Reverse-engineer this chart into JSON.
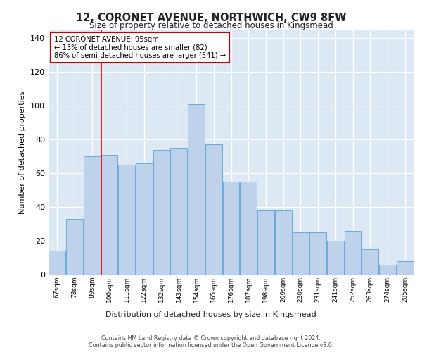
{
  "title": "12, CORONET AVENUE, NORTHWICH, CW9 8FW",
  "subtitle": "Size of property relative to detached houses in Kingsmead",
  "xlabel": "Distribution of detached houses by size in Kingsmead",
  "ylabel": "Number of detached properties",
  "bin_labels": [
    "67sqm",
    "78sqm",
    "89sqm",
    "100sqm",
    "111sqm",
    "122sqm",
    "132sqm",
    "143sqm",
    "154sqm",
    "165sqm",
    "176sqm",
    "187sqm",
    "198sqm",
    "209sqm",
    "220sqm",
    "231sqm",
    "241sqm",
    "252sqm",
    "263sqm",
    "274sqm",
    "285sqm"
  ],
  "bar_heights": [
    14,
    33,
    70,
    71,
    65,
    66,
    74,
    75,
    101,
    77,
    55,
    55,
    38,
    38,
    25,
    25,
    20,
    26,
    15,
    6,
    8
  ],
  "bar_color": "#bed3eb",
  "bar_edge_color": "#6aaad4",
  "background_color": "#dce9f5",
  "grid_color": "#ffffff",
  "red_line_value": 95,
  "annotation_text_line1": "12 CORONET AVENUE: 95sqm",
  "annotation_text_line2": "← 13% of detached houses are smaller (82)",
  "annotation_text_line3": "86% of semi-detached houses are larger (541) →",
  "ylim": [
    0,
    145
  ],
  "yticks": [
    0,
    20,
    40,
    60,
    80,
    100,
    120,
    140
  ],
  "footer_line1": "Contains HM Land Registry data © Crown copyright and database right 2024.",
  "footer_line2": "Contains public sector information licensed under the Open Government Licence v3.0."
}
